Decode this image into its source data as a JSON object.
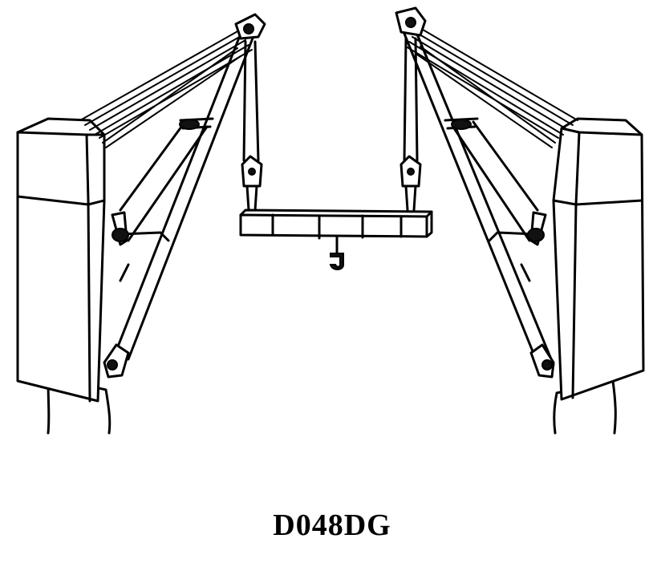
{
  "figure": {
    "caption": "D048DG"
  }
}
